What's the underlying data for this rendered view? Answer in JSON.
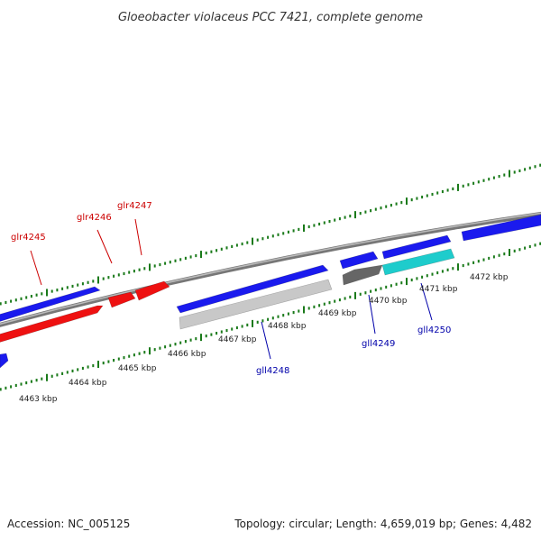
{
  "title": "Gloeobacter violaceus PCC 7421, complete genome",
  "footer": {
    "accession": "Accession: NC_005125",
    "summary": "Topology: circular; Length: 4,659,019 bp; Genes: 4,482"
  },
  "colors": {
    "backbone": "#8a8a8a",
    "tick": "#1a7a1a",
    "forward_label": "#cc0000",
    "reverse_label": "#0000aa",
    "blue_gene": "#1a1aee",
    "red_gene": "#ee1111",
    "gray_gene": "#c8c8c8",
    "dark_gene": "#666666",
    "cyan_gene": "#1ecccc"
  },
  "ticks": [
    {
      "label": "4463 kbp"
    },
    {
      "label": "4464 kbp"
    },
    {
      "label": "4465 kbp"
    },
    {
      "label": "4466 kbp"
    },
    {
      "label": "4467 kbp"
    },
    {
      "label": "4468 kbp"
    },
    {
      "label": "4469 kbp"
    },
    {
      "label": "4470 kbp"
    },
    {
      "label": "4471 kbp"
    },
    {
      "label": "4472 kbp"
    }
  ],
  "gene_labels": [
    {
      "name": "glr4245",
      "strand": "forward"
    },
    {
      "name": "glr4246",
      "strand": "forward"
    },
    {
      "name": "glr4247",
      "strand": "forward"
    },
    {
      "name": "gll4248",
      "strand": "reverse"
    },
    {
      "name": "gll4249",
      "strand": "reverse"
    },
    {
      "name": "gll4250",
      "strand": "reverse"
    }
  ]
}
